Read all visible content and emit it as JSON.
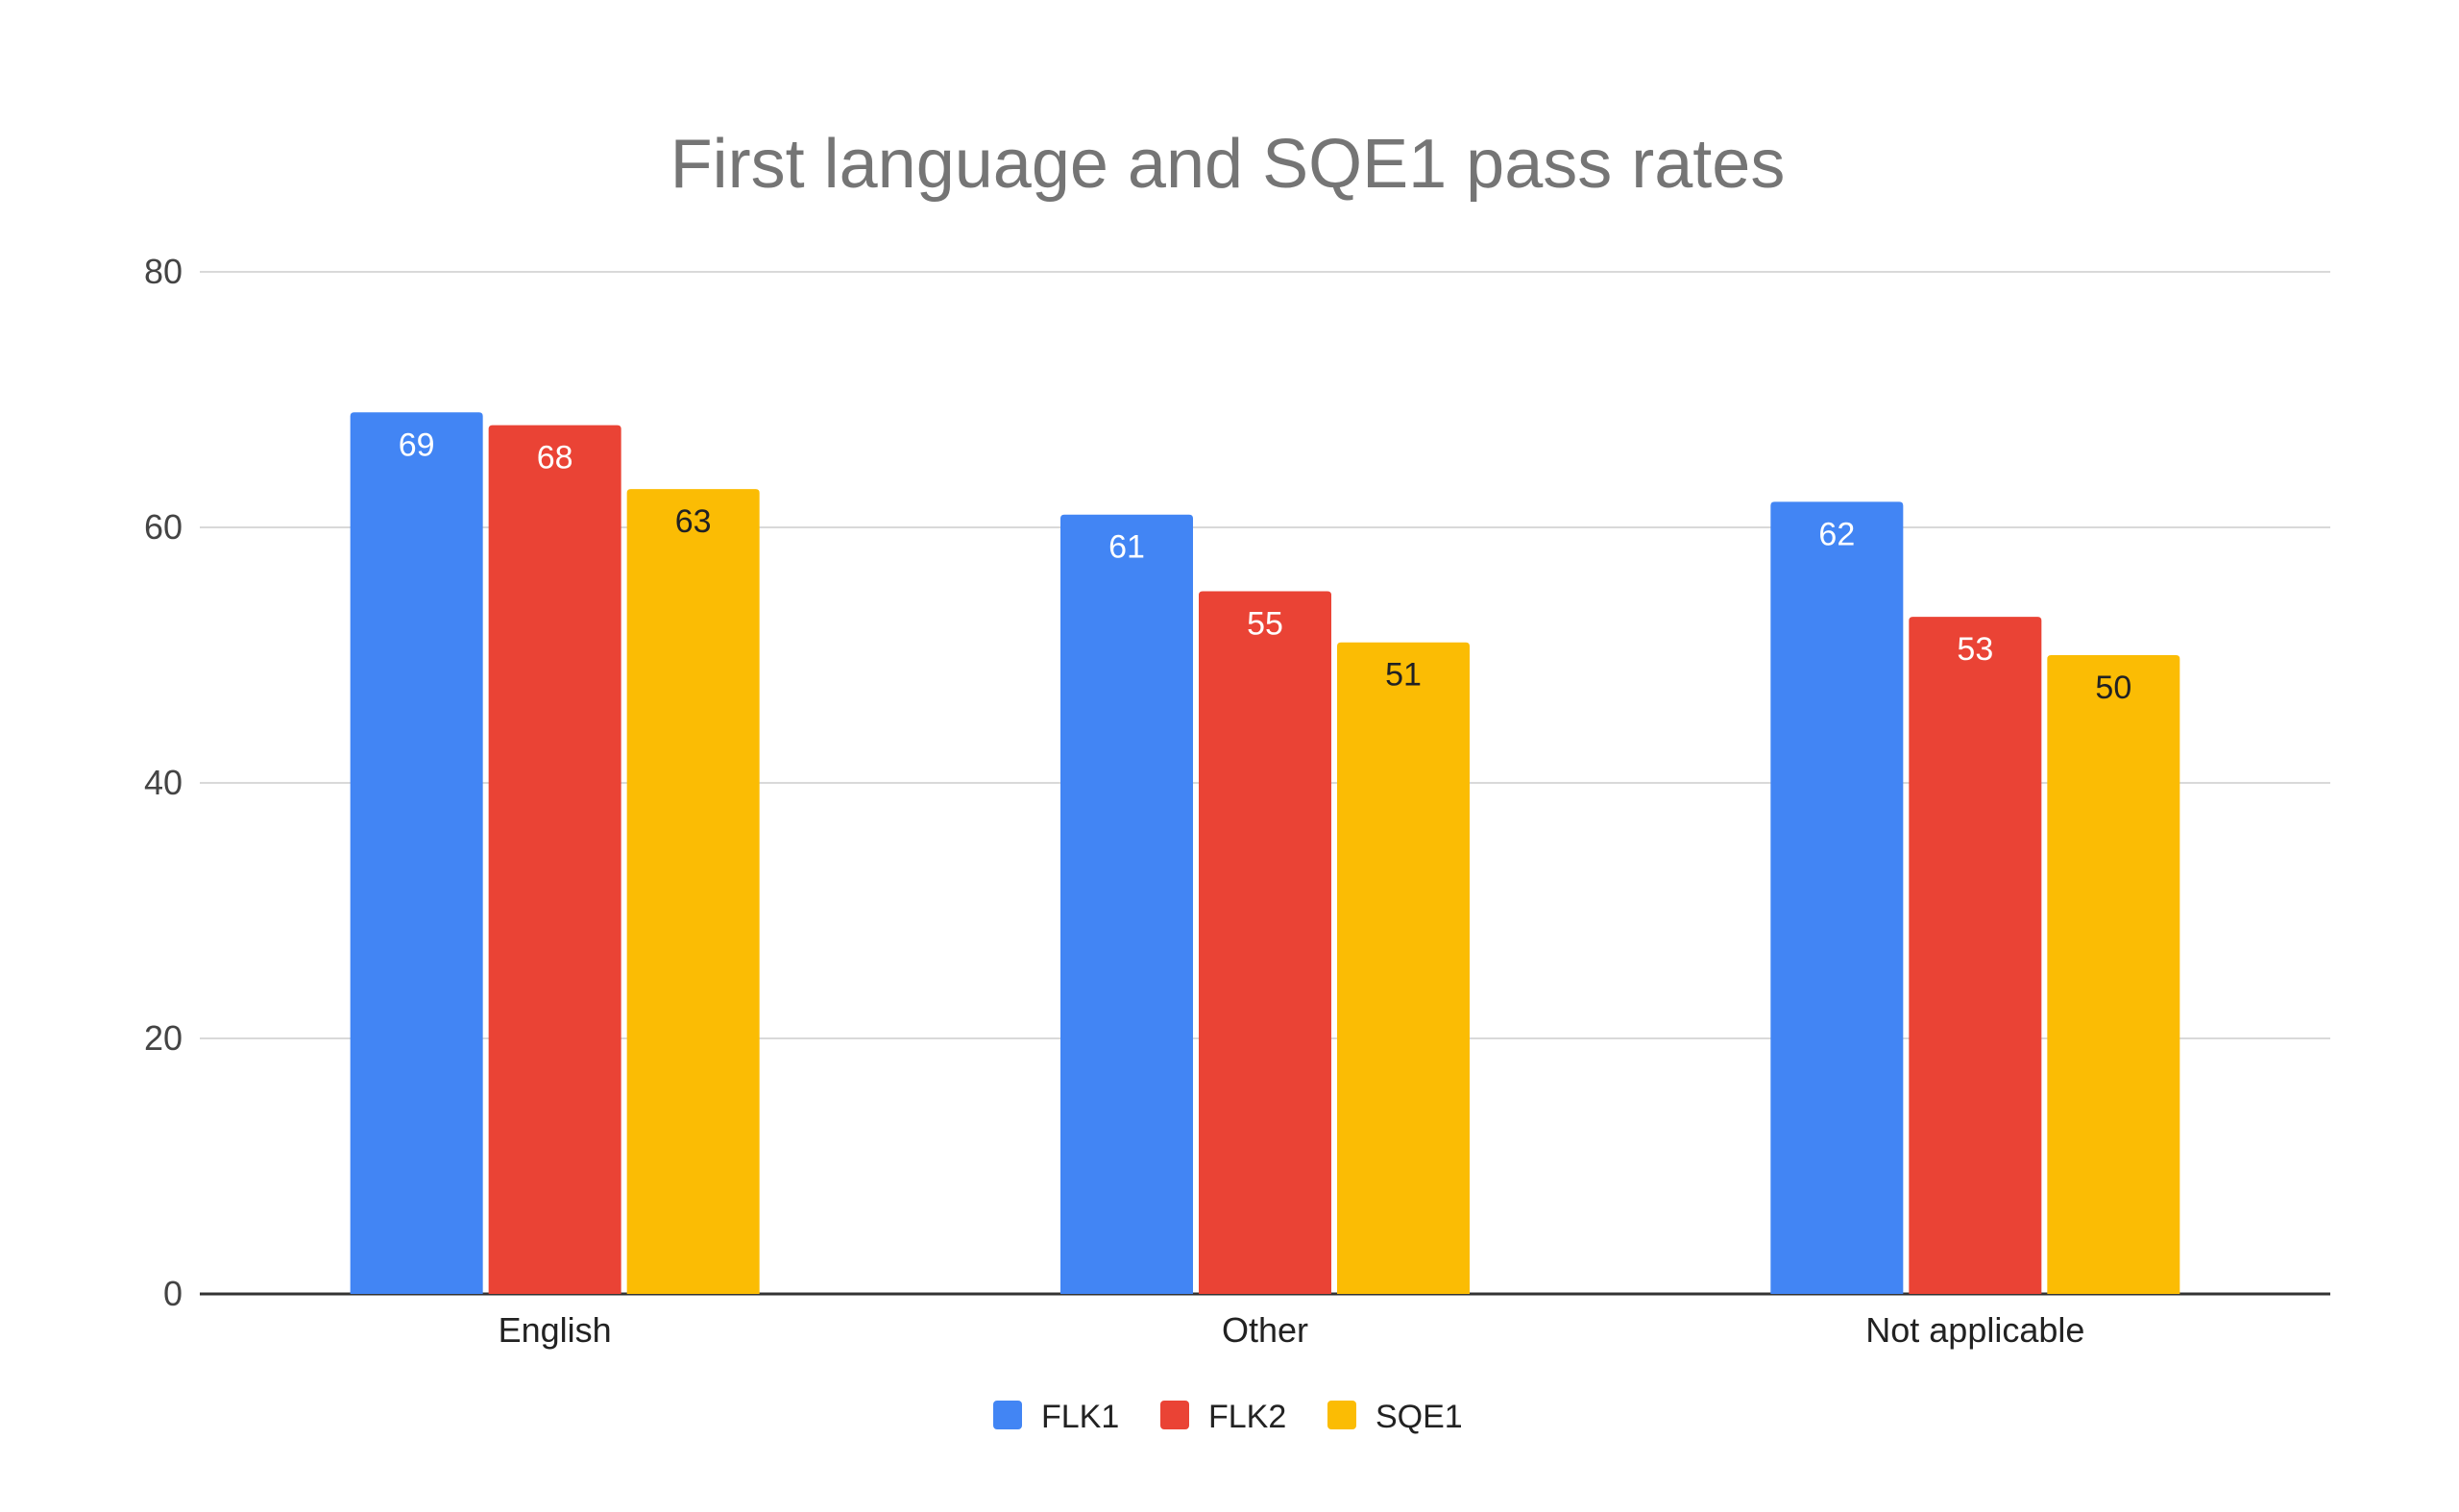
{
  "chart_data": {
    "type": "bar",
    "title": "First language and SQE1 pass rates",
    "xlabel": "",
    "ylabel": "",
    "ylim": [
      0,
      80
    ],
    "yticks": [
      0,
      20,
      40,
      60,
      80
    ],
    "grid": true,
    "legend_position": "bottom",
    "categories": [
      "English",
      "Other",
      "Not applicable"
    ],
    "series": [
      {
        "name": "FLK1",
        "color": "#4285f4",
        "label_color": "#ffffff",
        "values": [
          69,
          61,
          62
        ]
      },
      {
        "name": "FLK2",
        "color": "#ea4335",
        "label_color": "#ffffff",
        "values": [
          68,
          55,
          53
        ]
      },
      {
        "name": "SQE1",
        "color": "#fbbc04",
        "label_color": "#202124",
        "values": [
          63,
          51,
          50
        ]
      }
    ]
  }
}
